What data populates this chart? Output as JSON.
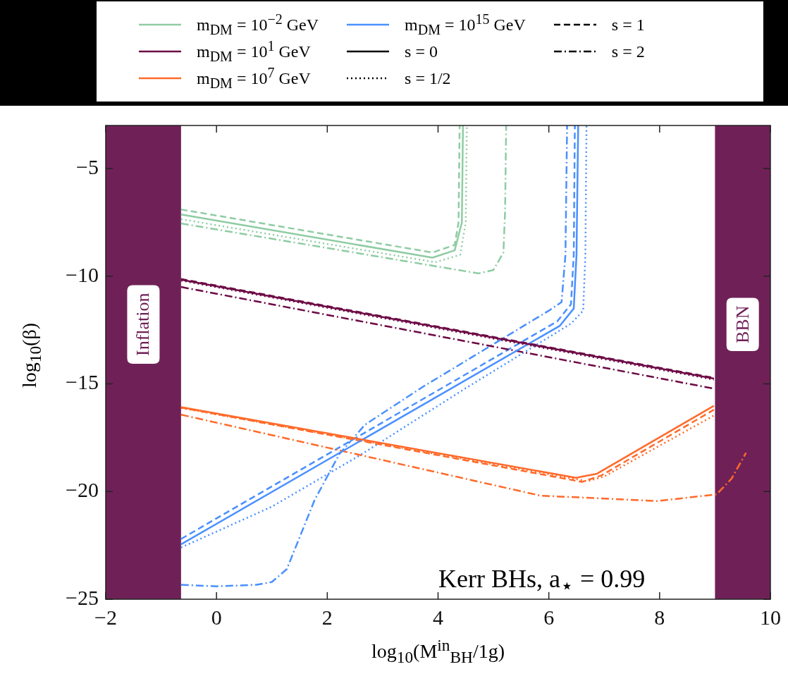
{
  "chart_data": {
    "type": "line",
    "xlabel": "log$_{10}$(M$^{in}$$_{BH}$/1g)",
    "ylabel": "log$_{10}$(β)",
    "xlim": [
      -2,
      10
    ],
    "ylim": [
      -25,
      -3
    ],
    "xticks": [
      -2,
      0,
      2,
      4,
      6,
      8,
      10
    ],
    "yticks": [
      -25,
      -20,
      -15,
      -10,
      -5
    ],
    "legend": "top",
    "annotations": [
      "Kerr BHs, a$_{⋆}$ = 0.99"
    ],
    "bands": [
      {
        "axis": "x",
        "from": -2,
        "to": -0.64,
        "label": "Inflation",
        "color": "#6f2157"
      },
      {
        "axis": "x",
        "from": 9.0,
        "to": 10,
        "label": "BBN",
        "color": "#6f2157"
      }
    ],
    "series": [
      {
        "name": "m$_{DM}$ = 10$^{−2}$ GeV",
        "color": "#8fcca3",
        "line_style": "solid",
        "x": [
          -0.64,
          3.9,
          4.3,
          4.43,
          4.45
        ],
        "values": [
          -7.13,
          -9.14,
          -8.8,
          -7.5,
          -3
        ]
      },
      {
        "name": "m$_{DM}$ = 10$^{1}$ GeV",
        "color": "#6d0a45",
        "line_style": "solid",
        "x": [
          -0.64,
          8.98
        ],
        "values": [
          -10.16,
          -14.75
        ]
      },
      {
        "name": "m$_{DM}$ = 10$^{7}$ GeV",
        "color": "#ff6a2a",
        "line_style": "solid",
        "x": [
          -0.64,
          6.49,
          6.87,
          8.98
        ],
        "values": [
          -16.08,
          -19.36,
          -19.17,
          -16.02
        ]
      },
      {
        "name": "m$_{DM}$ = 10$^{15}$ GeV",
        "color": "#4a90ff",
        "line_style": "solid",
        "x": [
          -0.64,
          6.2,
          6.45,
          6.5,
          6.53
        ],
        "values": [
          -22.45,
          -12.3,
          -11.5,
          -9,
          -3
        ]
      },
      {
        "name": "s = 0",
        "color": "#000000",
        "line_style": "solid"
      },
      {
        "name": "s = 1/2",
        "color": "#000000",
        "line_style": "dotted"
      },
      {
        "name": "s = 1",
        "color": "#000000",
        "line_style": "dashed"
      },
      {
        "name": "s = 2",
        "color": "#000000",
        "line_style": "dashdot"
      },
      {
        "color": "#8fcca3",
        "line_style": "dotted",
        "x": [
          -0.64,
          3.95,
          4.4,
          4.5,
          4.52
        ],
        "values": [
          -7.35,
          -9.35,
          -9.0,
          -7.5,
          -3
        ]
      },
      {
        "color": "#8fcca3",
        "line_style": "dashed",
        "x": [
          -0.64,
          3.9,
          4.3,
          4.37,
          4.39
        ],
        "values": [
          -6.9,
          -8.9,
          -8.55,
          -7.5,
          -3
        ]
      },
      {
        "color": "#8fcca3",
        "line_style": "dashdot",
        "x": [
          -0.64,
          4.73,
          5.0,
          5.18,
          5.21,
          5.23
        ],
        "values": [
          -7.55,
          -9.87,
          -9.71,
          -8.9,
          -7,
          -3
        ]
      },
      {
        "color": "#6d0a45",
        "line_style": "dotted",
        "x": [
          -0.64,
          8.98
        ],
        "values": [
          -10.2,
          -14.8
        ]
      },
      {
        "color": "#6d0a45",
        "line_style": "dashed",
        "x": [
          -0.64,
          8.98
        ],
        "values": [
          -10.13,
          -14.72
        ]
      },
      {
        "color": "#6d0a45",
        "line_style": "dashdot",
        "x": [
          -0.64,
          8.98
        ],
        "values": [
          -10.5,
          -15.22
        ]
      },
      {
        "color": "#ff6a2a",
        "line_style": "dotted",
        "x": [
          -0.64,
          6.7,
          7.0,
          8.98
        ],
        "values": [
          -16.12,
          -19.52,
          -19.3,
          -16.47
        ]
      },
      {
        "color": "#ff6a2a",
        "line_style": "dashed",
        "x": [
          -0.64,
          6.6,
          6.95,
          8.98
        ],
        "values": [
          -16.1,
          -19.55,
          -19.25,
          -16.2
        ]
      },
      {
        "color": "#ff6a2a",
        "line_style": "dashdot",
        "x": [
          -0.64,
          5.85,
          7.96,
          9.03,
          9.3,
          9.56
        ],
        "values": [
          -16.43,
          -20.19,
          -20.44,
          -20.13,
          -19.4,
          -18.2
        ]
      },
      {
        "color": "#4a90ff",
        "line_style": "dotted",
        "x": [
          -0.64,
          1.0,
          2.6,
          4.5,
          6.4,
          6.62,
          6.66,
          6.68
        ],
        "values": [
          -22.6,
          -20.7,
          -18.3,
          -15.2,
          -12.2,
          -11.6,
          -9,
          -3
        ]
      },
      {
        "color": "#4a90ff",
        "line_style": "dashed",
        "x": [
          -0.64,
          6.15,
          6.4,
          6.45,
          6.47
        ],
        "values": [
          -22.2,
          -12.1,
          -11.3,
          -9,
          -3
        ]
      },
      {
        "color": "#4a90ff",
        "line_style": "dashdot",
        "x": [
          -0.64,
          0.0,
          0.72,
          1.0,
          1.27,
          1.77,
          2.22,
          2.68,
          3.73,
          6.0,
          6.23,
          6.3,
          6.33
        ],
        "values": [
          -24.33,
          -24.4,
          -24.33,
          -24.2,
          -23.6,
          -20.4,
          -18.25,
          -16.9,
          -15.13,
          -11.6,
          -11.2,
          -9,
          -3
        ]
      }
    ]
  }
}
